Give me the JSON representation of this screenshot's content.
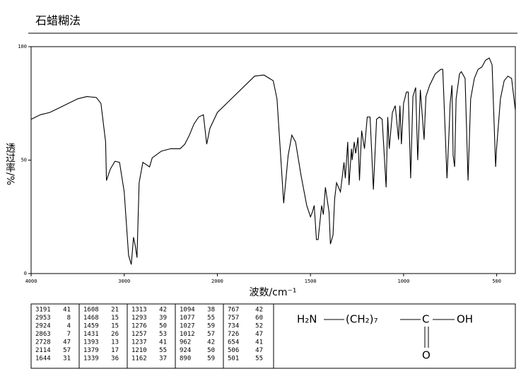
{
  "chart_data": {
    "type": "line",
    "title": "石蜡糊法",
    "xlabel": "波数/cm⁻¹",
    "ylabel": "透过率/%",
    "xlim": [
      4000,
      400
    ],
    "xticks": [
      4000,
      3000,
      2000,
      1500,
      1000,
      500
    ],
    "ylim": [
      0,
      100
    ],
    "yticks": [
      0,
      50,
      100
    ],
    "color": "#000000",
    "x": [
      4000,
      3900,
      3800,
      3700,
      3600,
      3500,
      3400,
      3300,
      3250,
      3200,
      3191,
      3150,
      3100,
      3050,
      3000,
      2953,
      2924,
      2900,
      2880,
      2863,
      2840,
      2800,
      2728,
      2700,
      2600,
      2500,
      2400,
      2350,
      2300,
      2250,
      2200,
      2150,
      2114,
      2080,
      2000,
      1900,
      1800,
      1750,
      1700,
      1680,
      1660,
      1644,
      1620,
      1600,
      1580,
      1550,
      1520,
      1500,
      1490,
      1480,
      1468,
      1459,
      1440,
      1431,
      1420,
      1400,
      1393,
      1379,
      1370,
      1360,
      1339,
      1320,
      1313,
      1300,
      1293,
      1280,
      1276,
      1265,
      1257,
      1245,
      1237,
      1225,
      1210,
      1195,
      1180,
      1162,
      1145,
      1130,
      1115,
      1094,
      1085,
      1077,
      1060,
      1045,
      1027,
      1020,
      1012,
      1000,
      985,
      975,
      962,
      950,
      935,
      924,
      910,
      890,
      880,
      860,
      830,
      800,
      790,
      785,
      767,
      757,
      750,
      740,
      734,
      726,
      718,
      700,
      690,
      670,
      654,
      640,
      620,
      600,
      580,
      560,
      540,
      525,
      506,
      501,
      480,
      460,
      440,
      420,
      400
    ],
    "values": [
      68,
      70,
      71,
      73,
      75,
      77,
      78,
      77.6,
      75,
      58,
      41,
      46,
      49.5,
      49,
      36,
      8,
      4,
      16,
      12,
      7,
      40,
      49,
      47,
      51,
      54,
      55,
      55,
      57,
      61,
      66,
      69,
      70,
      57,
      64,
      71,
      79,
      87,
      87.5,
      85,
      77,
      52,
      31,
      52,
      61,
      58,
      43,
      30,
      25,
      27,
      30,
      15,
      15,
      30,
      26,
      38,
      27,
      13,
      17,
      33,
      40,
      36,
      49,
      42,
      58,
      39,
      55,
      50,
      58,
      53,
      60,
      41,
      63,
      55,
      69,
      69,
      37,
      68,
      69,
      68,
      38,
      69,
      55,
      71,
      74,
      59,
      74,
      57,
      75,
      80,
      80,
      42,
      78,
      82,
      50,
      81,
      59,
      78,
      83,
      88,
      90,
      90,
      80,
      42,
      60,
      75,
      83,
      52,
      47,
      77,
      88,
      89,
      86,
      41,
      77,
      86,
      90,
      91,
      94,
      95,
      92,
      47,
      55,
      77,
      85,
      87,
      86,
      72
    ]
  },
  "peak_table": [
    [
      [
        3191,
        41
      ],
      [
        2953,
        8
      ],
      [
        2924,
        4
      ],
      [
        2863,
        7
      ],
      [
        2728,
        47
      ],
      [
        2114,
        57
      ],
      [
        1644,
        31
      ]
    ],
    [
      [
        1608,
        21
      ],
      [
        1468,
        15
      ],
      [
        1459,
        15
      ],
      [
        1431,
        26
      ],
      [
        1393,
        13
      ],
      [
        1379,
        17
      ],
      [
        1339,
        36
      ]
    ],
    [
      [
        1313,
        42
      ],
      [
        1293,
        39
      ],
      [
        1276,
        50
      ],
      [
        1257,
        53
      ],
      [
        1237,
        41
      ],
      [
        1210,
        55
      ],
      [
        1162,
        37
      ]
    ],
    [
      [
        1094,
        38
      ],
      [
        1077,
        55
      ],
      [
        1027,
        59
      ],
      [
        1012,
        57
      ],
      [
        962,
        42
      ],
      [
        924,
        50
      ],
      [
        890,
        59
      ]
    ],
    [
      [
        767,
        42
      ],
      [
        757,
        60
      ],
      [
        734,
        52
      ],
      [
        726,
        47
      ],
      [
        654,
        41
      ],
      [
        506,
        47
      ],
      [
        501,
        55
      ]
    ]
  ],
  "structure": {
    "amine": "H₂N",
    "chain": "(CH₂)₇",
    "carbon": "C",
    "hydroxyl": "OH",
    "oxygen": "O"
  }
}
